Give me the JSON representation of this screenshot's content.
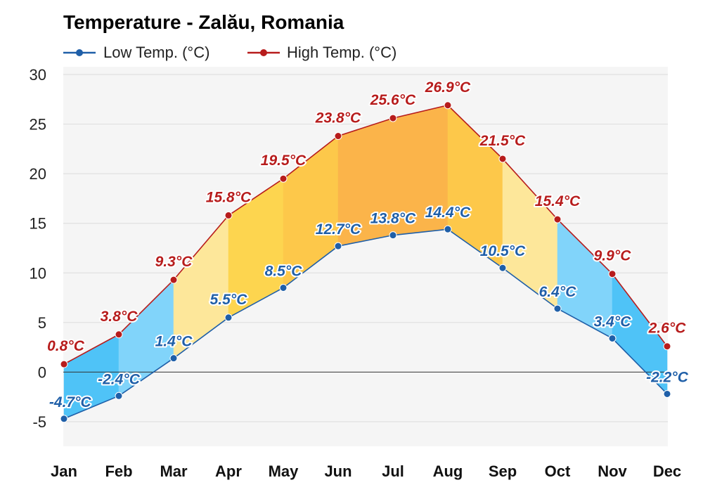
{
  "chart_data": {
    "type": "area",
    "title": "Temperature - Zalău, Romania",
    "categories": [
      "Jan",
      "Feb",
      "Mar",
      "Apr",
      "May",
      "Jun",
      "Jul",
      "Aug",
      "Sep",
      "Oct",
      "Nov",
      "Dec"
    ],
    "series": [
      {
        "name": "Low Temp. (°C)",
        "color": "#1f5fa8",
        "values": [
          -4.7,
          -2.4,
          1.4,
          5.5,
          8.5,
          12.7,
          13.8,
          14.4,
          10.5,
          6.4,
          3.4,
          -2.2
        ],
        "labels": [
          "-4.7°C",
          "-2.4°C",
          "1.4°C",
          "5.5°C",
          "8.5°C",
          "12.7°C",
          "13.8°C",
          "14.4°C",
          "10.5°C",
          "6.4°C",
          "3.4°C",
          "-2.2°C"
        ]
      },
      {
        "name": "High Temp. (°C)",
        "color": "#b71c1c",
        "values": [
          0.8,
          3.8,
          9.3,
          15.8,
          19.5,
          23.8,
          25.6,
          26.9,
          21.5,
          15.4,
          9.9,
          2.6
        ],
        "labels": [
          "0.8°C",
          "3.8°C",
          "9.3°C",
          "15.8°C",
          "19.5°C",
          "23.8°C",
          "25.6°C",
          "26.9°C",
          "21.5°C",
          "15.4°C",
          "9.9°C",
          "2.6°C"
        ]
      }
    ],
    "ylim": [
      -5,
      30
    ],
    "yticks": [
      "-5",
      "0",
      "5",
      "10",
      "15",
      "20",
      "25",
      "30"
    ],
    "ytick_values": [
      -5,
      0,
      5,
      10,
      15,
      20,
      25,
      30
    ],
    "grid": true,
    "legend": "top-left",
    "band_colors": [
      "#4fc3f7",
      "#81d4fa",
      "#fde79a",
      "#fdd54f",
      "#fdc84a",
      "#fbb44a",
      "#fbb44a",
      "#fdc84a",
      "#fde79a",
      "#81d4fa",
      "#4fc3f7"
    ],
    "background": "#f5f5f5"
  }
}
